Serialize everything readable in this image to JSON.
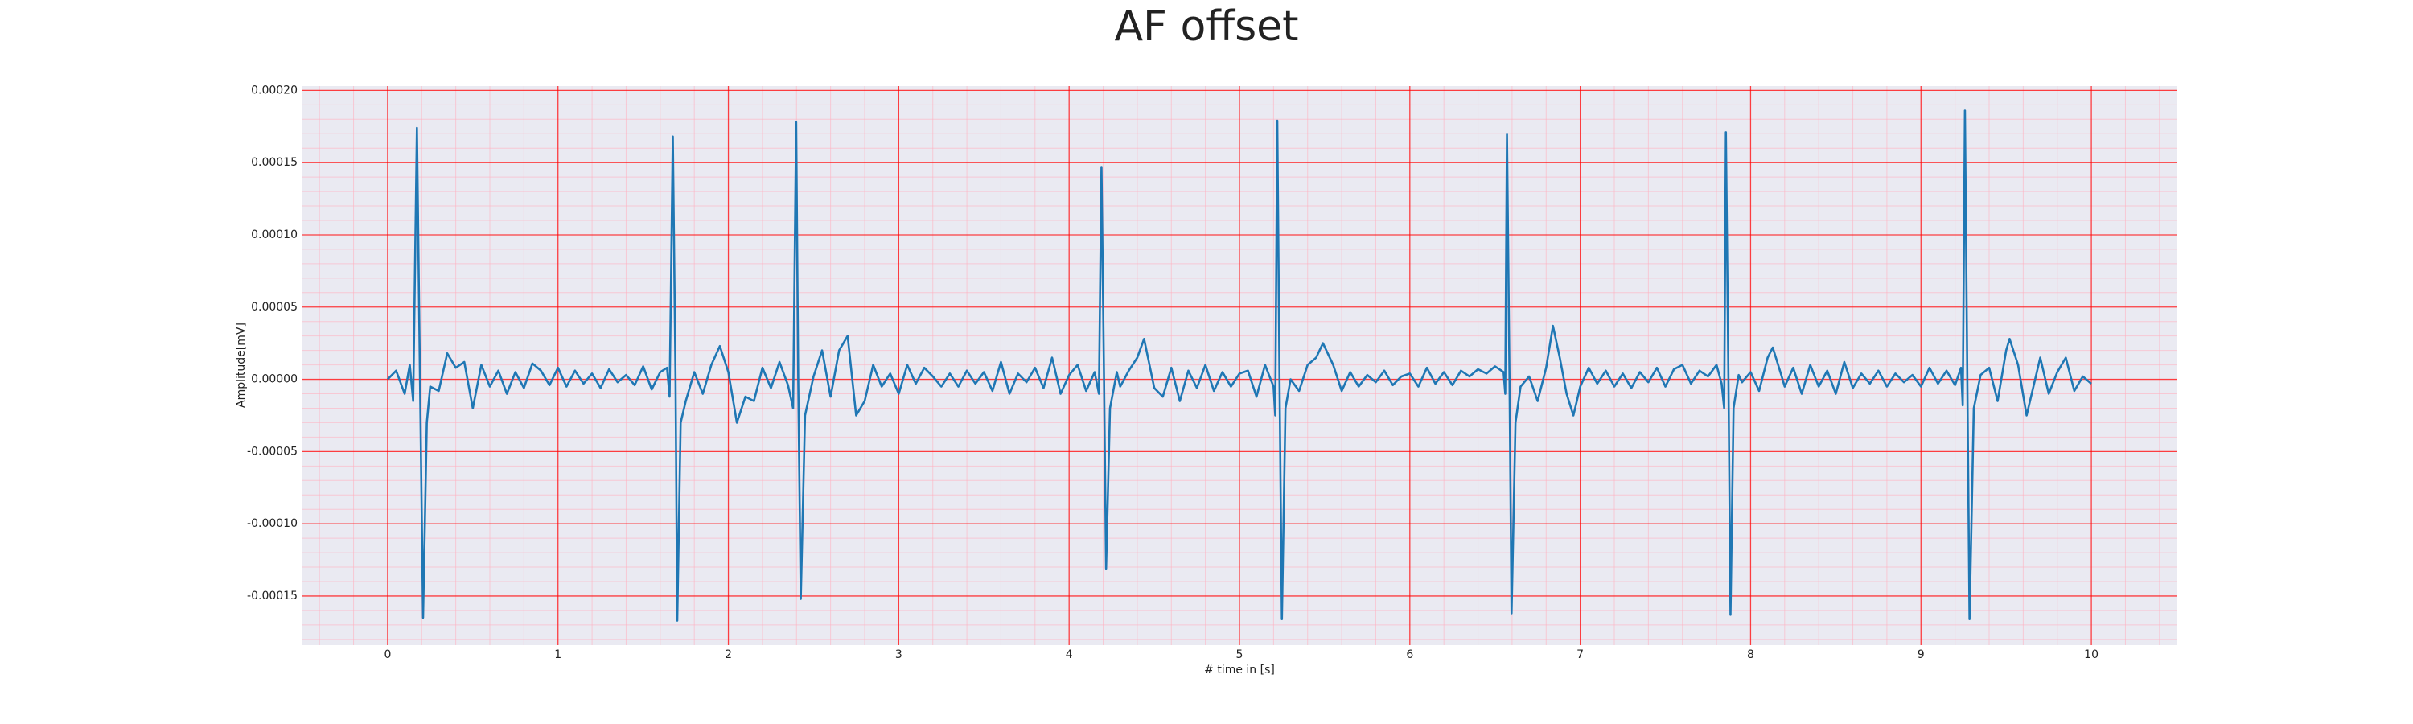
{
  "chart_data": {
    "type": "line",
    "title": "AF offset",
    "xlabel": "# time in [s]",
    "ylabel": "Amplitude[mV]",
    "color": "#1f77b4",
    "grid": true,
    "grid_color": "#ff0000",
    "minor_grid": true,
    "minor_divisions": 5,
    "minor_grid_color": "#ffb0c0",
    "xlim": [
      -0.5,
      10.5
    ],
    "xticks": [
      0,
      1,
      2,
      3,
      4,
      5,
      6,
      7,
      8,
      9,
      10
    ],
    "ylim": [
      -0.000184,
      0.000203
    ],
    "yticks": [
      {
        "value": -0.00015,
        "label": "-0.00015"
      },
      {
        "value": -0.0001,
        "label": "-0.00010"
      },
      {
        "value": -5e-05,
        "label": "-0.00005"
      },
      {
        "value": 0,
        "label": "0.00000"
      },
      {
        "value": 5e-05,
        "label": "0.00005"
      },
      {
        "value": 0.0001,
        "label": "0.00010"
      },
      {
        "value": 0.00015,
        "label": "0.00015"
      },
      {
        "value": 0.0002,
        "label": "0.00020"
      }
    ],
    "x": [
      0,
      0.05,
      0.1,
      0.13,
      0.15,
      0.172,
      0.19,
      0.208,
      0.23,
      0.25,
      0.3,
      0.35,
      0.4,
      0.45,
      0.5,
      0.55,
      0.6,
      0.65,
      0.7,
      0.75,
      0.8,
      0.85,
      0.9,
      0.95,
      1.0,
      1.05,
      1.1,
      1.15,
      1.2,
      1.25,
      1.3,
      1.35,
      1.4,
      1.45,
      1.5,
      1.55,
      1.6,
      1.64,
      1.655,
      1.674,
      1.69,
      1.7,
      1.72,
      1.75,
      1.8,
      1.85,
      1.9,
      1.95,
      2.0,
      2.05,
      2.1,
      2.15,
      2.2,
      2.25,
      2.3,
      2.35,
      2.38,
      2.398,
      2.41,
      2.425,
      2.45,
      2.5,
      2.55,
      2.6,
      2.65,
      2.7,
      2.75,
      2.8,
      2.85,
      2.9,
      2.95,
      3.0,
      3.05,
      3.1,
      3.15,
      3.2,
      3.25,
      3.3,
      3.35,
      3.4,
      3.45,
      3.5,
      3.55,
      3.6,
      3.65,
      3.7,
      3.75,
      3.8,
      3.85,
      3.9,
      3.95,
      4.0,
      4.05,
      4.1,
      4.15,
      4.175,
      4.19,
      4.205,
      4.217,
      4.24,
      4.28,
      4.3,
      4.35,
      4.4,
      4.44,
      4.5,
      4.55,
      4.6,
      4.65,
      4.7,
      4.75,
      4.8,
      4.85,
      4.9,
      4.95,
      5.0,
      5.05,
      5.1,
      5.15,
      5.2,
      5.21,
      5.222,
      5.235,
      5.249,
      5.27,
      5.3,
      5.35,
      5.4,
      5.45,
      5.49,
      5.55,
      5.6,
      5.65,
      5.7,
      5.75,
      5.8,
      5.85,
      5.9,
      5.95,
      6.0,
      6.05,
      6.1,
      6.15,
      6.2,
      6.25,
      6.3,
      6.35,
      6.4,
      6.45,
      6.5,
      6.55,
      6.56,
      6.57,
      6.585,
      6.597,
      6.62,
      6.65,
      6.7,
      6.75,
      6.8,
      6.84,
      6.88,
      6.92,
      6.96,
      7.0,
      7.05,
      7.1,
      7.15,
      7.2,
      7.25,
      7.3,
      7.35,
      7.4,
      7.45,
      7.5,
      7.55,
      7.6,
      7.65,
      7.7,
      7.75,
      7.8,
      7.83,
      7.845,
      7.855,
      7.87,
      7.882,
      7.9,
      7.93,
      7.95,
      8.0,
      8.05,
      8.1,
      8.13,
      8.18,
      8.2,
      8.25,
      8.3,
      8.35,
      8.4,
      8.45,
      8.5,
      8.55,
      8.6,
      8.65,
      8.7,
      8.75,
      8.8,
      8.85,
      8.9,
      8.95,
      9.0,
      9.05,
      9.1,
      9.15,
      9.2,
      9.235,
      9.245,
      9.258,
      9.272,
      9.285,
      9.31,
      9.35,
      9.4,
      9.45,
      9.5,
      9.52,
      9.57,
      9.62,
      9.66,
      9.7,
      9.75,
      9.8,
      9.85,
      9.9,
      9.95,
      10.0
    ],
    "values": [
      0,
      6e-06,
      -1e-05,
      1e-05,
      -1.5e-05,
      0.000174,
      0,
      -0.000165,
      -3e-05,
      -5e-06,
      -8e-06,
      1.8e-05,
      8e-06,
      1.2e-05,
      -2e-05,
      1e-05,
      -5e-06,
      6e-06,
      -1e-05,
      5e-06,
      -6e-06,
      1.1e-05,
      6e-06,
      -4e-06,
      8e-06,
      -5e-06,
      6e-06,
      -3e-06,
      4e-06,
      -6e-06,
      7e-06,
      -2e-06,
      3e-06,
      -4e-06,
      9e-06,
      -7e-06,
      5e-06,
      8e-06,
      -1.2e-05,
      0.000168,
      0,
      -0.000167,
      -3e-05,
      -1.5e-05,
      5e-06,
      -1e-05,
      1e-05,
      2.3e-05,
      5e-06,
      -3e-05,
      -1.2e-05,
      -1.5e-05,
      8e-06,
      -6e-06,
      1.2e-05,
      -4e-06,
      -2e-05,
      0.000178,
      0,
      -0.000152,
      -2.5e-05,
      2e-06,
      2e-05,
      -1.2e-05,
      2e-05,
      3e-05,
      -2.5e-05,
      -1.5e-05,
      1e-05,
      -5e-06,
      4e-06,
      -1e-05,
      1e-05,
      -3e-06,
      8e-06,
      2e-06,
      -5e-06,
      4e-06,
      -5e-06,
      6e-06,
      -3e-06,
      5e-06,
      -8e-06,
      1.2e-05,
      -1e-05,
      4e-06,
      -2e-06,
      8e-06,
      -6e-06,
      1.5e-05,
      -1e-05,
      3e-06,
      1e-05,
      -8e-06,
      5e-06,
      -1e-05,
      0.000147,
      0,
      -0.000131,
      -2e-05,
      5e-06,
      -5e-06,
      6e-06,
      1.5e-05,
      2.8e-05,
      -6e-06,
      -1.2e-05,
      8e-06,
      -1.5e-05,
      6e-06,
      -6e-06,
      1e-05,
      -8e-06,
      5e-06,
      -5e-06,
      4e-06,
      6e-06,
      -1.2e-05,
      1e-05,
      -5e-06,
      -2.5e-05,
      0.000179,
      0,
      -0.000166,
      -2e-05,
      0,
      -8e-06,
      1e-05,
      1.5e-05,
      2.5e-05,
      1e-05,
      -8e-06,
      5e-06,
      -5e-06,
      3e-06,
      -2e-06,
      6e-06,
      -4e-06,
      2e-06,
      4e-06,
      -5e-06,
      8e-06,
      -3e-06,
      5e-06,
      -4e-06,
      6e-06,
      2e-06,
      7e-06,
      4e-06,
      9e-06,
      5e-06,
      -1e-05,
      0.00017,
      0,
      -0.000162,
      -3e-05,
      -5e-06,
      2e-06,
      -1.5e-05,
      8e-06,
      3.7e-05,
      1.5e-05,
      -1e-05,
      -2.5e-05,
      -5e-06,
      8e-06,
      -3e-06,
      6e-06,
      -5e-06,
      4e-06,
      -6e-06,
      5e-06,
      -2e-06,
      8e-06,
      -5e-06,
      7e-06,
      1e-05,
      -3e-06,
      6e-06,
      2e-06,
      1e-05,
      -3e-06,
      -2e-05,
      0.000171,
      0,
      -0.000163,
      -2e-05,
      3e-06,
      -2e-06,
      5e-06,
      -8e-06,
      1.5e-05,
      2.2e-05,
      3e-06,
      -5e-06,
      8e-06,
      -1e-05,
      1e-05,
      -5e-06,
      6e-06,
      -1e-05,
      1.2e-05,
      -6e-06,
      4e-06,
      -3e-06,
      6e-06,
      -5e-06,
      4e-06,
      -2e-06,
      3e-06,
      -5e-06,
      8e-06,
      -3e-06,
      6e-06,
      -4e-06,
      8e-06,
      -1.8e-05,
      0.000186,
      0,
      -0.000166,
      -2e-05,
      3e-06,
      8e-06,
      -1.5e-05,
      2e-05,
      2.8e-05,
      1e-05,
      -2.5e-05,
      -5e-06,
      1.5e-05,
      -1e-05,
      5e-06,
      1.5e-05,
      -8e-06,
      2e-06,
      -3e-06
    ]
  }
}
